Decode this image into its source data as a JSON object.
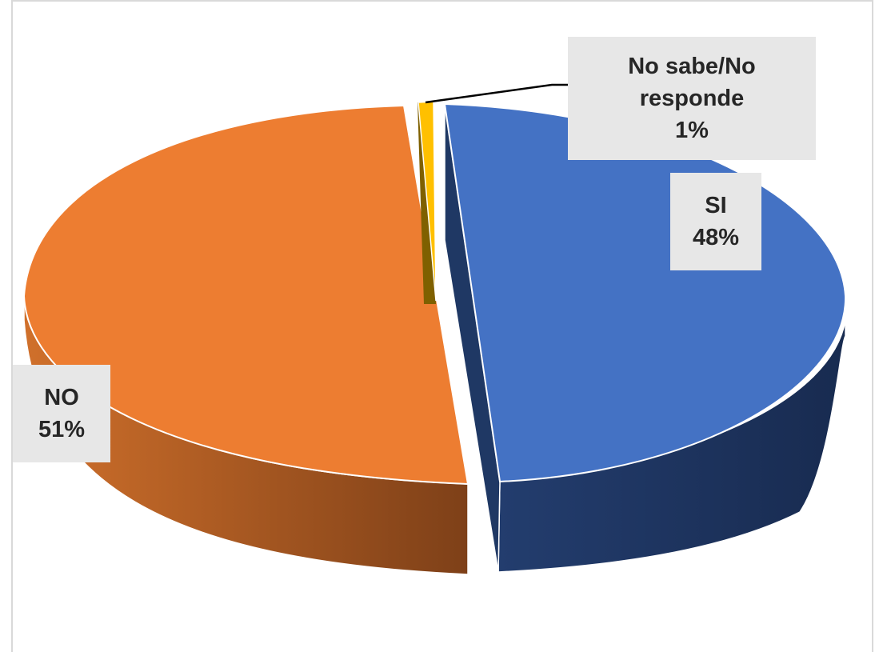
{
  "chart_data": {
    "type": "pie",
    "style": "3d-exploded",
    "title": "",
    "slices": [
      {
        "label": "SI",
        "value": 48,
        "value_label": "48%",
        "top_color": "#4472C4",
        "side_color": "#1F3864"
      },
      {
        "label": "NO",
        "value": 51,
        "value_label": "51%",
        "top_color": "#ED7D31",
        "side_color": "#A54F1A"
      },
      {
        "label": "No sabe/No responde",
        "label_lines": [
          "No sabe/No",
          "responde"
        ],
        "value": 1,
        "value_label": "1%",
        "top_color": "#FFC000",
        "side_color": "#7F6000"
      }
    ],
    "legend": "none",
    "data_labels": "callout"
  }
}
